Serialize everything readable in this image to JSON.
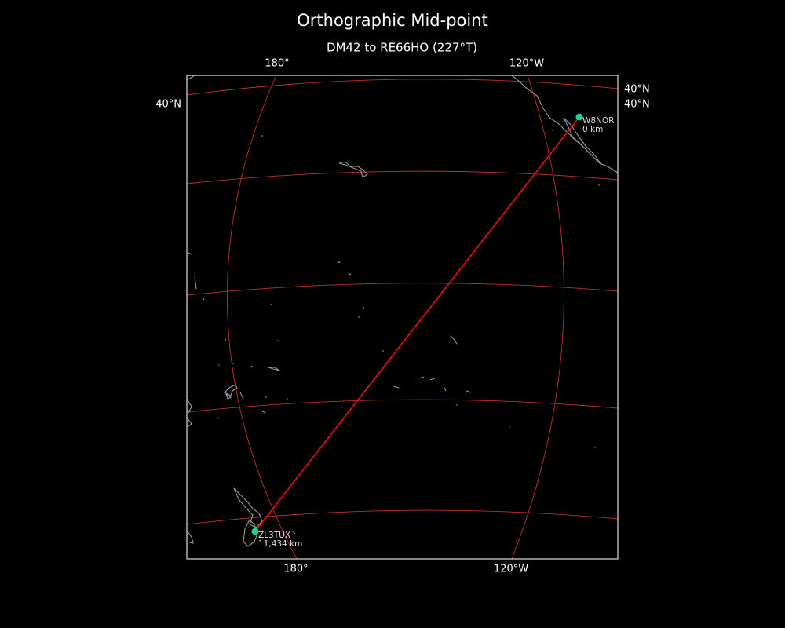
{
  "map": {
    "title": "Orthographic Mid-point",
    "subtitle": "DM42 to RE66HO (227°T)",
    "top_labels": [
      "180°",
      "120°W"
    ],
    "bottom_labels": [
      "180°",
      "120°W"
    ],
    "left_labels": [
      "40°N"
    ],
    "right_labels": [
      "40°N",
      "40°N"
    ],
    "stations": [
      {
        "call": "W8NOR",
        "distance": "0 km"
      },
      {
        "call": "ZL3TUX",
        "distance": "11,434 km"
      }
    ]
  }
}
